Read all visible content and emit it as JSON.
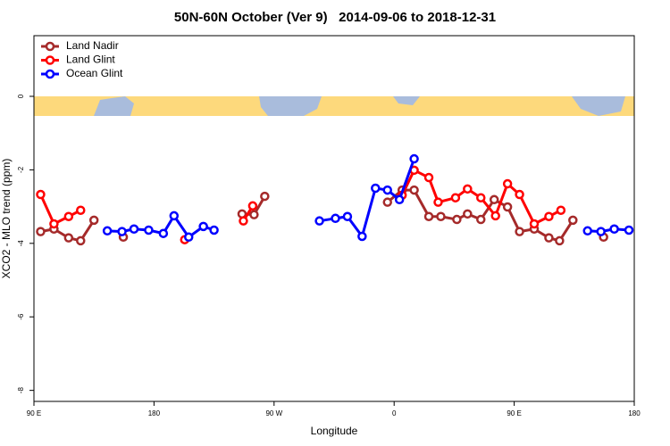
{
  "chart_data": {
    "type": "line",
    "title": "50N-60N October (Ver 9)   2014-09-06 to 2018-12-31",
    "xlabel": "Longitude",
    "ylabel": "XCO2 - MLO trend (ppm)",
    "xlim": [
      90,
      540
    ],
    "ylim": [
      -8.3,
      1.65
    ],
    "xticks": [
      {
        "value": 90,
        "label": "90 E"
      },
      180,
      {
        "value": 270,
        "label": "90 W"
      },
      {
        "value": 360,
        "label": "0"
      },
      {
        "value": 450,
        "label": "90 E"
      },
      {
        "value": 540,
        "label": "180"
      }
    ],
    "yticks": [
      0,
      -2,
      -4,
      -6,
      -8
    ],
    "legend": "top-left",
    "series": [
      {
        "name": "Land Nadir",
        "color": "#a52a2a",
        "x": [
          95,
          105,
          116,
          125,
          135,
          null,
          157,
          null,
          246,
          255,
          263,
          null,
          355,
          366,
          375,
          386,
          395,
          407,
          415,
          425,
          435,
          445,
          454,
          465,
          476,
          484,
          494,
          null,
          517
        ],
        "values": [
          -3.68,
          -3.61,
          -3.85,
          -3.93,
          -3.37,
          null,
          -3.83,
          null,
          -3.2,
          -3.22,
          -2.72,
          null,
          -2.88,
          -2.55,
          -2.55,
          -3.27,
          -3.27,
          -3.35,
          -3.2,
          -3.35,
          -2.81,
          -3.01,
          -3.68,
          -3.61,
          -3.85,
          -3.93,
          -3.37,
          null,
          -3.83
        ]
      },
      {
        "name": "Land Glint",
        "color": "#ff0000",
        "x": [
          95,
          105,
          116,
          125,
          null,
          203,
          null,
          247,
          254,
          null,
          366,
          375,
          386,
          393,
          406,
          415,
          425,
          436,
          445,
          454,
          465,
          476,
          485
        ],
        "values": [
          -2.67,
          -3.47,
          -3.27,
          -3.1,
          null,
          -3.9,
          null,
          -3.39,
          -2.98,
          null,
          -2.69,
          -2.01,
          -2.21,
          -2.88,
          -2.76,
          -2.52,
          -2.76,
          -3.25,
          -2.38,
          -2.67,
          -3.47,
          -3.27,
          -3.1
        ]
      },
      {
        "name": "Ocean Glint",
        "color": "#0000ff",
        "x": [
          145,
          156,
          165,
          176,
          187,
          195,
          206,
          217,
          225,
          null,
          304,
          316,
          325,
          336,
          346,
          355,
          364,
          375,
          null,
          505,
          515,
          525,
          536
        ],
        "values": [
          -3.66,
          -3.68,
          -3.61,
          -3.64,
          -3.73,
          -3.25,
          -3.83,
          -3.54,
          -3.64,
          null,
          -3.39,
          -3.32,
          -3.27,
          -3.81,
          -2.5,
          -2.55,
          -2.81,
          -1.7,
          null,
          -3.66,
          -3.68,
          -3.61,
          -3.64
        ]
      }
    ]
  }
}
